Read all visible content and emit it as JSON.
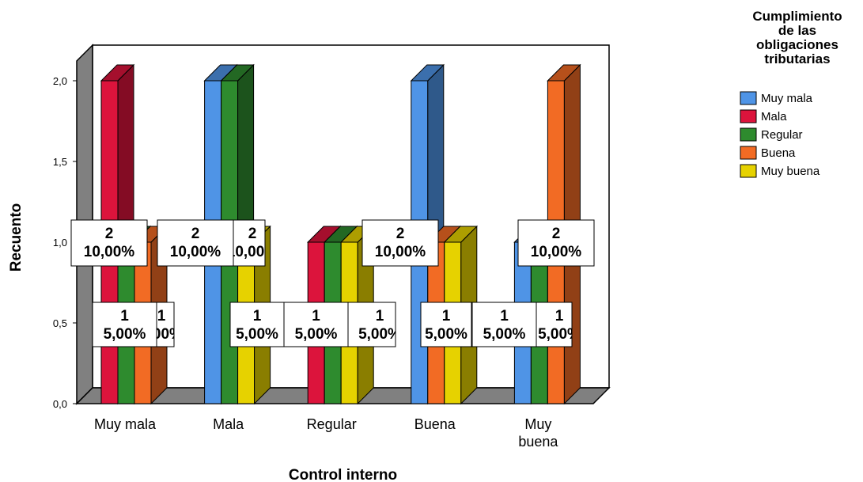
{
  "chart_data": {
    "type": "bar",
    "style": "3d-clustered",
    "xlabel": "Control interno",
    "ylabel": "Recuento",
    "ylim": [
      0,
      2
    ],
    "y_ticks": [
      "0,0",
      "0,5",
      "1,0",
      "1,5",
      "2,0"
    ],
    "categories": [
      "Muy mala",
      "Mala",
      "Regular",
      "Buena",
      "Muy buena"
    ],
    "category_labels": [
      [
        "Muy mala"
      ],
      [
        "Mala"
      ],
      [
        "Regular"
      ],
      [
        "Buena"
      ],
      [
        "Muy",
        "buena"
      ]
    ],
    "legend_title": [
      "Cumplimiento",
      "de las",
      "obligaciones",
      "tributarias"
    ],
    "legend_position": "top-right",
    "series": [
      {
        "name": "Muy mala",
        "color": "#4F94E6",
        "values": [
          0,
          2,
          0,
          2,
          1
        ]
      },
      {
        "name": "Mala",
        "color": "#DC143C",
        "values": [
          2,
          0,
          1,
          0,
          0
        ]
      },
      {
        "name": "Regular",
        "color": "#2E8B2E",
        "values": [
          1,
          2,
          1,
          0,
          1
        ]
      },
      {
        "name": "Buena",
        "color": "#F26B24",
        "values": [
          1,
          0,
          0,
          1,
          2
        ]
      },
      {
        "name": "Muy buena",
        "color": "#E6D200",
        "values": [
          0,
          1,
          1,
          1,
          0
        ]
      }
    ],
    "data_labels": [
      {
        "count": "2",
        "percent": "10,00%"
      },
      {
        "count": "1",
        "percent": "5,00%"
      },
      {
        "count": "2",
        "percent": "10,00%"
      },
      {
        "count": "1",
        "percent": "5,00%"
      },
      {
        "count": "1",
        "percent": "5,00%"
      },
      {
        "count": "2",
        "percent": "10,00%"
      },
      {
        "count": "1",
        "percent": "5,00%"
      },
      {
        "count": "1",
        "percent": "5,00%"
      },
      {
        "count": "1",
        "percent": "5,00%"
      },
      {
        "count": "1",
        "percent": "5,00%"
      },
      {
        "count": "2",
        "percent": "10,00%"
      }
    ]
  }
}
